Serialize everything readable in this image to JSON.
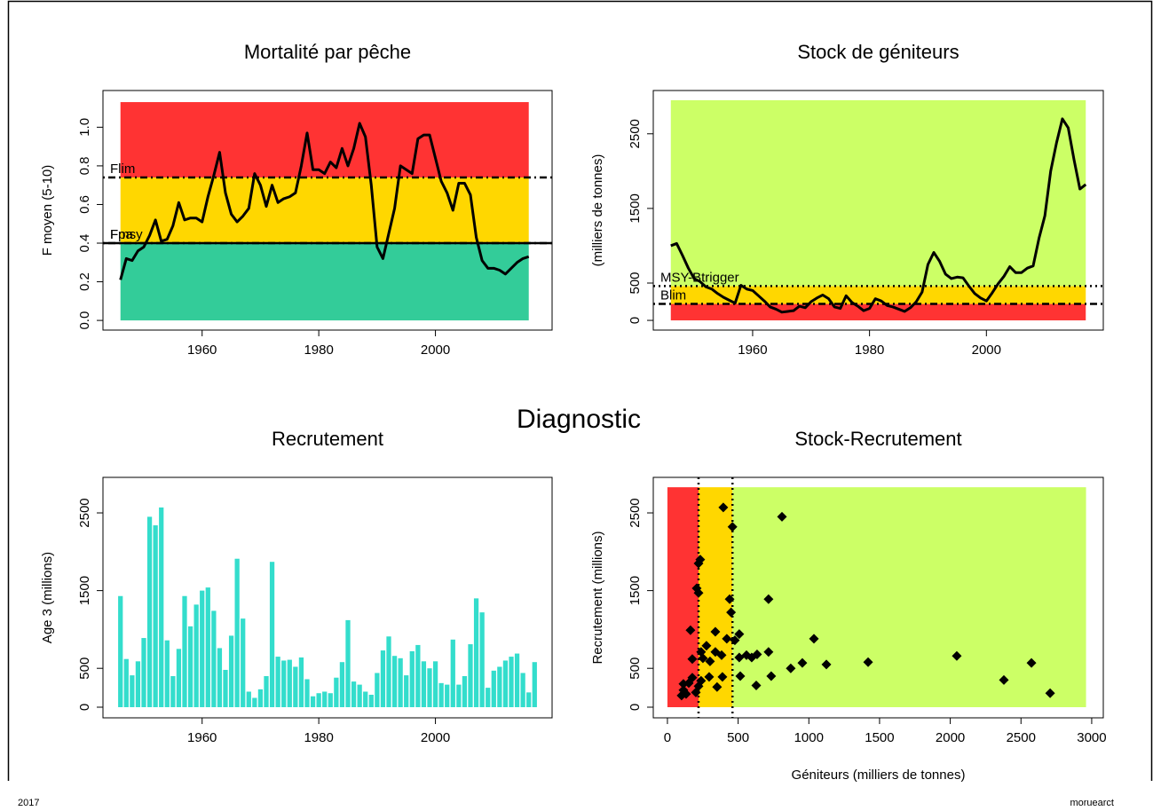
{
  "title": "Diagnostic",
  "footer_left": "2017",
  "footer_right": "moruearct",
  "chart_data": [
    {
      "type": "line",
      "title": "Mortalité par pêche",
      "y_label": "F moyen (5-10)",
      "x": [
        1946,
        1947,
        1948,
        1949,
        1950,
        1951,
        1952,
        1953,
        1954,
        1955,
        1956,
        1957,
        1958,
        1959,
        1960,
        1961,
        1962,
        1963,
        1964,
        1965,
        1966,
        1967,
        1968,
        1969,
        1970,
        1971,
        1972,
        1973,
        1974,
        1975,
        1976,
        1977,
        1978,
        1979,
        1980,
        1981,
        1982,
        1983,
        1984,
        1985,
        1986,
        1987,
        1988,
        1989,
        1990,
        1991,
        1992,
        1993,
        1994,
        1995,
        1996,
        1997,
        1998,
        1999,
        2000,
        2001,
        2002,
        2003,
        2004,
        2005,
        2006,
        2007,
        2008,
        2009,
        2010,
        2011,
        2012,
        2013,
        2014,
        2015,
        2016
      ],
      "series": [
        {
          "color": "#000000",
          "values": [
            0.21,
            0.32,
            0.31,
            0.36,
            0.38,
            0.44,
            0.52,
            0.41,
            0.42,
            0.49,
            0.61,
            0.52,
            0.53,
            0.53,
            0.51,
            0.64,
            0.75,
            0.87,
            0.66,
            0.55,
            0.51,
            0.54,
            0.58,
            0.76,
            0.7,
            0.59,
            0.7,
            0.61,
            0.63,
            0.64,
            0.66,
            0.8,
            0.97,
            0.78,
            0.78,
            0.76,
            0.82,
            0.79,
            0.89,
            0.8,
            0.89,
            1.02,
            0.95,
            0.7,
            0.38,
            0.32,
            0.45,
            0.58,
            0.8,
            0.78,
            0.76,
            0.94,
            0.96,
            0.96,
            0.84,
            0.72,
            0.66,
            0.57,
            0.71,
            0.71,
            0.65,
            0.43,
            0.31,
            0.27,
            0.27,
            0.26,
            0.24,
            0.27,
            0.3,
            0.32,
            0.33
          ]
        }
      ],
      "bands": [
        {
          "from": 0,
          "to": 0.4,
          "color": "#33cc99"
        },
        {
          "from": 0.4,
          "to": 0.74,
          "color": "#ffd700"
        },
        {
          "from": 0.74,
          "to": 1.13,
          "color": "#ff3333"
        }
      ],
      "reference_lines": [
        {
          "name": "Flim",
          "value": 0.74,
          "dash": "dotdash"
        },
        {
          "name": "Fpa",
          "value": 0.4,
          "dash": "dotdash"
        },
        {
          "name": "Fmsy",
          "value": 0.4,
          "dash": "solid"
        }
      ],
      "xlim": [
        1943,
        2020
      ],
      "ylim": [
        -0.05,
        1.19
      ],
      "xticks": [
        1960,
        1980,
        2000
      ],
      "yticks": [
        {
          "value": 0,
          "label": "0.0"
        },
        0.2,
        0.4,
        0.6,
        0.8,
        {
          "value": 1,
          "label": "1.0"
        }
      ]
    },
    {
      "type": "line",
      "title": "Stock de géniteurs",
      "y_label": "(milliers de tonnes)",
      "x": [
        1946,
        1947,
        1948,
        1949,
        1950,
        1951,
        1952,
        1953,
        1954,
        1955,
        1956,
        1957,
        1958,
        1959,
        1960,
        1961,
        1962,
        1963,
        1964,
        1965,
        1966,
        1967,
        1968,
        1969,
        1970,
        1971,
        1972,
        1973,
        1974,
        1975,
        1976,
        1977,
        1978,
        1979,
        1980,
        1981,
        1982,
        1983,
        1984,
        1985,
        1986,
        1987,
        1988,
        1989,
        1990,
        1991,
        1992,
        1993,
        1994,
        1995,
        1996,
        1997,
        1998,
        1999,
        2000,
        2001,
        2002,
        2003,
        2004,
        2005,
        2006,
        2007,
        2008,
        2009,
        2010,
        2011,
        2012,
        2013,
        2014,
        2015,
        2016,
        2017
      ],
      "series": [
        {
          "color": "#000000",
          "values": [
            1000,
            1030,
            870,
            700,
            560,
            520,
            450,
            420,
            360,
            310,
            270,
            230,
            470,
            420,
            400,
            330,
            260,
            180,
            150,
            110,
            120,
            130,
            190,
            170,
            250,
            300,
            340,
            290,
            180,
            160,
            330,
            240,
            190,
            130,
            160,
            290,
            260,
            200,
            180,
            150,
            120,
            170,
            250,
            380,
            750,
            910,
            790,
            620,
            560,
            580,
            570,
            460,
            360,
            300,
            260,
            370,
            490,
            590,
            720,
            640,
            640,
            700,
            730,
            1100,
            1400,
            2000,
            2380,
            2700,
            2580,
            2150,
            1760,
            1820
          ]
        }
      ],
      "bands": [
        {
          "from": 0,
          "to": 220,
          "color": "#ff3333"
        },
        {
          "from": 220,
          "to": 460,
          "color": "#ffd700"
        },
        {
          "from": 460,
          "to": 2950,
          "color": "#ccff66"
        }
      ],
      "reference_lines": [
        {
          "name": "MSY-Btrigger",
          "value": 460,
          "dash": "dotted"
        },
        {
          "name": "Blim",
          "value": 220,
          "dash": "dotdash"
        }
      ],
      "xlim": [
        1943,
        2020
      ],
      "ylim": [
        -130,
        3080
      ],
      "xticks": [
        1960,
        1980,
        2000
      ],
      "yticks": [
        0,
        500,
        1500,
        2500
      ]
    },
    {
      "type": "bar",
      "title": "Recrutement",
      "y_label": "Age 3 (millions)",
      "color": "#33ddcc",
      "x": [
        1946,
        1947,
        1948,
        1949,
        1950,
        1951,
        1952,
        1953,
        1954,
        1955,
        1956,
        1957,
        1958,
        1959,
        1960,
        1961,
        1962,
        1963,
        1964,
        1965,
        1966,
        1967,
        1968,
        1969,
        1970,
        1971,
        1972,
        1973,
        1974,
        1975,
        1976,
        1977,
        1978,
        1979,
        1980,
        1981,
        1982,
        1983,
        1984,
        1985,
        1986,
        1987,
        1988,
        1989,
        1990,
        1991,
        1992,
        1993,
        1994,
        1995,
        1996,
        1997,
        1998,
        1999,
        2000,
        2001,
        2002,
        2003,
        2004,
        2005,
        2006,
        2007,
        2008,
        2009,
        2010,
        2011,
        2012,
        2013,
        2014,
        2015,
        2016,
        2017
      ],
      "values": [
        1430,
        620,
        410,
        590,
        890,
        2450,
        2340,
        2570,
        860,
        400,
        750,
        1430,
        1040,
        1320,
        1500,
        1540,
        1240,
        760,
        480,
        920,
        1910,
        1140,
        200,
        120,
        230,
        400,
        1870,
        650,
        600,
        610,
        520,
        640,
        360,
        140,
        180,
        200,
        180,
        380,
        580,
        1120,
        330,
        290,
        200,
        160,
        440,
        730,
        910,
        660,
        630,
        410,
        720,
        800,
        590,
        500,
        590,
        310,
        290,
        870,
        290,
        400,
        810,
        1400,
        1220,
        250,
        470,
        520,
        600,
        650,
        690,
        440,
        190,
        580
      ],
      "xlim": [
        1943,
        2020
      ],
      "ylim": [
        -137,
        2957
      ],
      "xticks": [
        1960,
        1980,
        2000
      ],
      "yticks": [
        0,
        500,
        1500,
        2500
      ]
    },
    {
      "type": "scatter",
      "title": "Stock-Recrutement",
      "x_label": "Géniteurs (milliers de tonnes)",
      "y_label": "Recrutement (millions)",
      "color": "#000000",
      "x": [
        395,
        810,
        460,
        232,
        220,
        207,
        220,
        715,
        440,
        450,
        163,
        339,
        508,
        477,
        420,
        1036,
        715,
        634,
        559,
        508,
        596,
        339,
        276,
        238,
        251,
        301,
        383,
        1419,
        2046,
        2574,
        2379,
        2706,
        1124,
        954,
        872,
        734,
        628,
        515,
        389,
        351,
        295,
        238,
        176,
        151,
        113,
        132,
        100,
        220,
        201,
        176,
        113
      ],
      "values": [
        2570,
        2450,
        2320,
        1900,
        1850,
        1530,
        1470,
        1390,
        1390,
        1220,
        990,
        970,
        940,
        860,
        880,
        880,
        710,
        680,
        670,
        640,
        640,
        710,
        790,
        710,
        630,
        590,
        670,
        580,
        660,
        570,
        350,
        180,
        550,
        570,
        500,
        400,
        280,
        400,
        390,
        260,
        390,
        340,
        380,
        310,
        220,
        170,
        150,
        270,
        190,
        620,
        300
      ],
      "band_axis": "x",
      "band_extent": [
        0,
        2830
      ],
      "bands": [
        {
          "from": 0,
          "to": 220,
          "color": "#ff3333"
        },
        {
          "from": 220,
          "to": 460,
          "color": "#ffd700"
        },
        {
          "from": 460,
          "to": 2960,
          "color": "#ccff66"
        }
      ],
      "x_reference_lines": [
        {
          "value": 220,
          "dash": "dotted"
        },
        {
          "value": 460,
          "dash": "dotted"
        }
      ],
      "xlim": [
        -100,
        3082
      ],
      "ylim": [
        -137,
        2957
      ],
      "xticks": [
        0,
        500,
        1000,
        1500,
        2000,
        2500,
        3000
      ],
      "yticks": [
        0,
        500,
        1500,
        2500
      ]
    }
  ]
}
